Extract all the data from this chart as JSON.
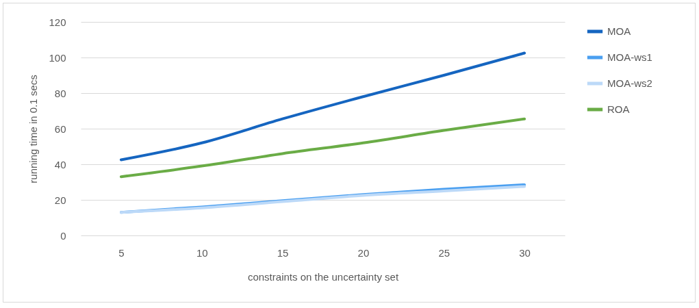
{
  "chart_data": {
    "type": "line",
    "xlabel": "constraints on the uncertainty set",
    "ylabel": "running time in 0.1 secs",
    "categories": [
      "5",
      "10",
      "15",
      "20",
      "25",
      "30"
    ],
    "series": [
      {
        "name": "MOA",
        "color": "#1565c0",
        "values": [
          42.5,
          52,
          65.5,
          78,
          90,
          102.5
        ]
      },
      {
        "name": "MOA-ws1",
        "color": "#4a9ff0",
        "values": [
          13,
          16,
          19.5,
          23,
          26,
          28.5
        ]
      },
      {
        "name": "MOA-ws2",
        "color": "#bcd9f8",
        "values": [
          13,
          15.5,
          19,
          22.5,
          25,
          27.5
        ]
      },
      {
        "name": "ROA",
        "color": "#6aac46",
        "values": [
          33,
          39,
          46,
          52,
          59,
          65.5
        ]
      }
    ],
    "ylim": [
      0,
      120
    ],
    "yticks": [
      0,
      20,
      40,
      60,
      80,
      100,
      120
    ],
    "grid": "y",
    "legend": "right",
    "marker": "none",
    "line_style": "solid"
  }
}
